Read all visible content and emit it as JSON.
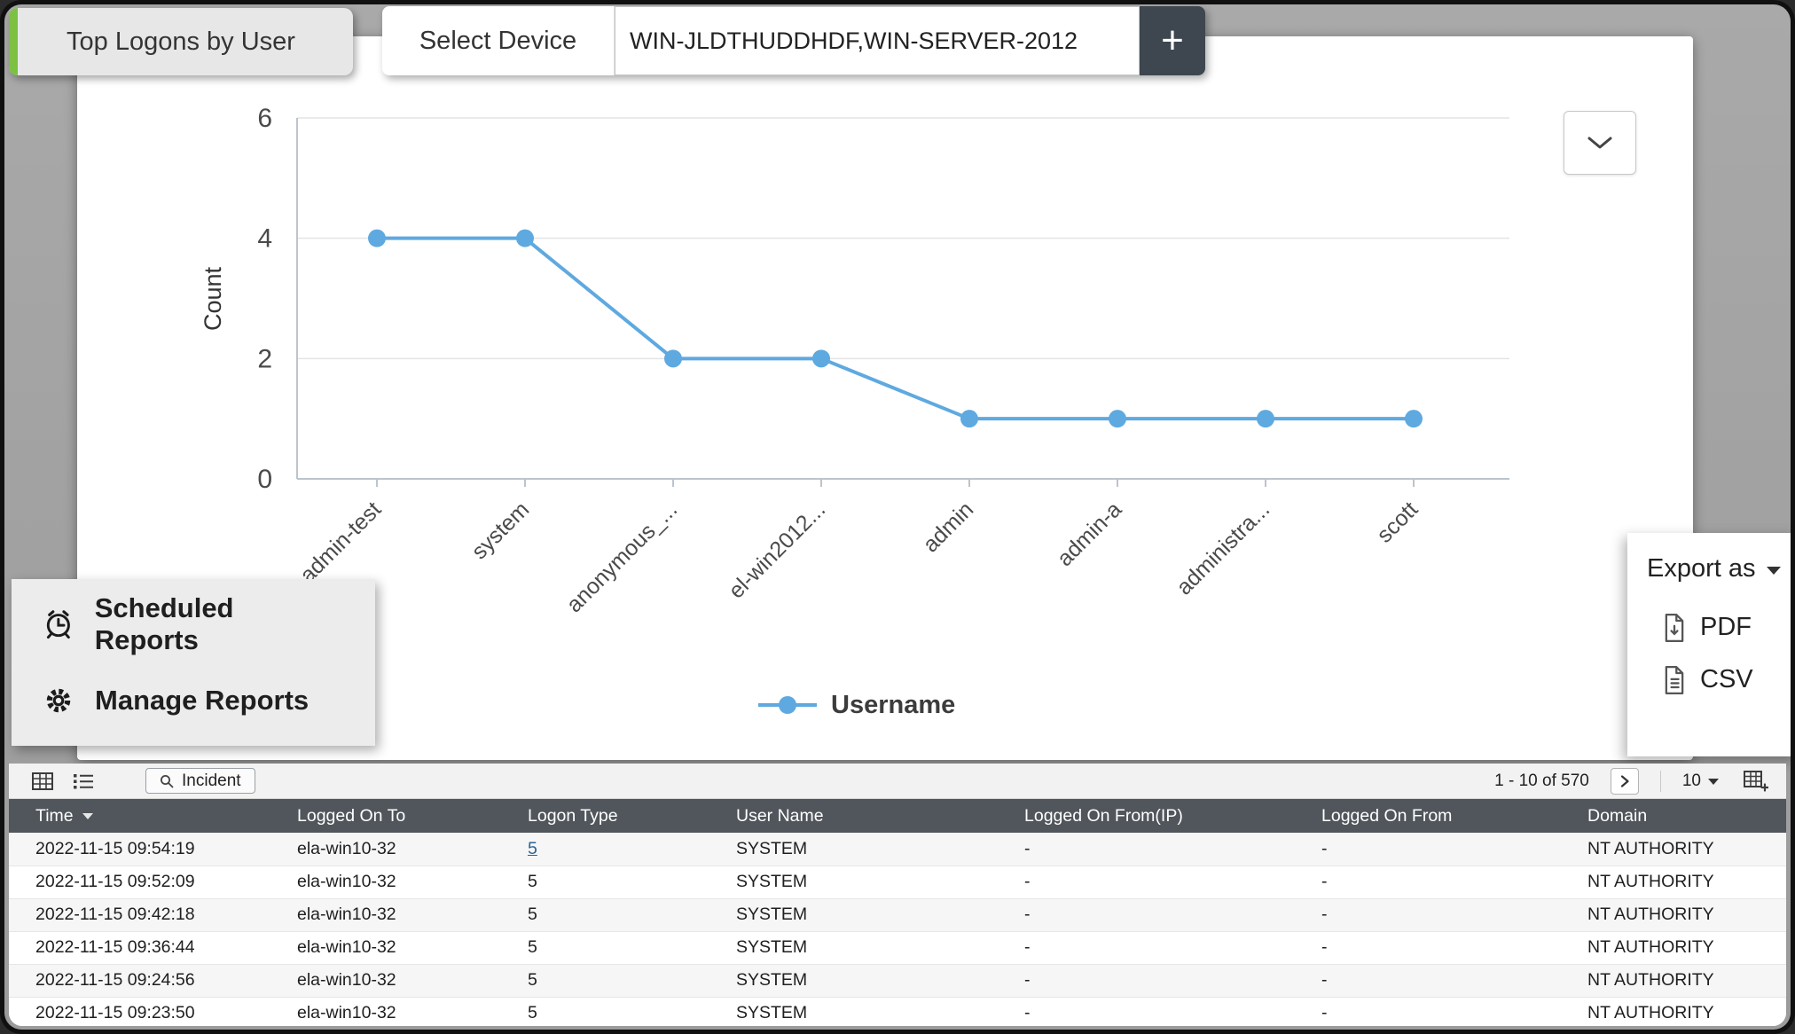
{
  "tab": {
    "label": "Top Logons by User"
  },
  "device_selector": {
    "label": "Select Device",
    "value": "WIN-JLDTHUDDHDF,WIN-SERVER-2012",
    "add_label": "+"
  },
  "chart_data": {
    "type": "line",
    "categories": [
      "admin-test",
      "system",
      "anonymous_...",
      "el-win2012...",
      "admin",
      "admin-a",
      "administra...",
      "scott"
    ],
    "series": [
      {
        "name": "Username",
        "values": [
          4,
          4,
          2,
          2,
          1,
          1,
          1,
          1
        ]
      }
    ],
    "title": "",
    "xlabel": "",
    "ylabel": "Count",
    "ylim": [
      0,
      6
    ],
    "yticks": [
      0,
      2,
      4,
      6
    ],
    "grid": true,
    "legend_position": "bottom",
    "line_color": "#5ea9e0"
  },
  "reports_menu": {
    "items": [
      {
        "icon": "alarm-clock-icon",
        "label": "Scheduled Reports"
      },
      {
        "icon": "gear-icon",
        "label": "Manage Reports"
      }
    ]
  },
  "export_menu": {
    "label": "Export as",
    "options": [
      {
        "icon": "pdf-file-icon",
        "label": "PDF"
      },
      {
        "icon": "csv-file-icon",
        "label": "CSV"
      }
    ]
  },
  "toolbar": {
    "incident_label": "Incident",
    "pagination": "1 - 10 of 570",
    "page_size": "10"
  },
  "table": {
    "columns": [
      "Time",
      "Logged On To",
      "Logon Type",
      "User Name",
      "Logged On From(IP)",
      "Logged On From",
      "Domain"
    ],
    "rows": [
      [
        "2022-11-15 09:54:19",
        "ela-win10-32",
        "5",
        "SYSTEM",
        "-",
        "-",
        "NT AUTHORITY"
      ],
      [
        "2022-11-15 09:52:09",
        "ela-win10-32",
        "5",
        "SYSTEM",
        "-",
        "-",
        "NT AUTHORITY"
      ],
      [
        "2022-11-15 09:42:18",
        "ela-win10-32",
        "5",
        "SYSTEM",
        "-",
        "-",
        "NT AUTHORITY"
      ],
      [
        "2022-11-15 09:36:44",
        "ela-win10-32",
        "5",
        "SYSTEM",
        "-",
        "-",
        "NT AUTHORITY"
      ],
      [
        "2022-11-15 09:24:56",
        "ela-win10-32",
        "5",
        "SYSTEM",
        "-",
        "-",
        "NT AUTHORITY"
      ],
      [
        "2022-11-15 09:23:50",
        "ela-win10-32",
        "5",
        "SYSTEM",
        "-",
        "-",
        "NT AUTHORITY"
      ]
    ]
  }
}
